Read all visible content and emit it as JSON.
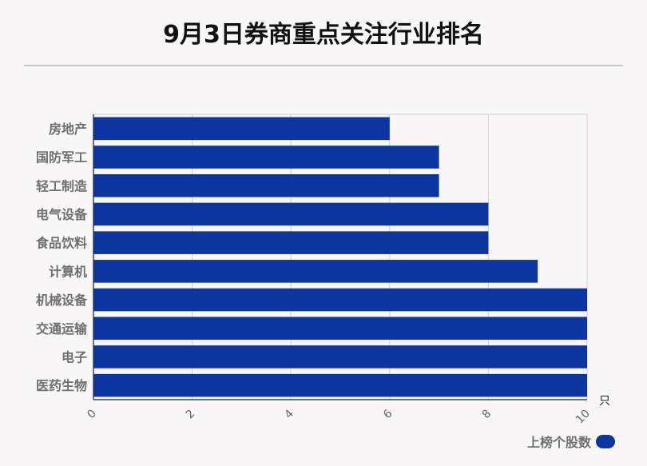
{
  "chart_data": {
    "type": "bar",
    "orientation": "horizontal",
    "title": "9月3日券商重点关注行业排名",
    "categories": [
      "房地产",
      "国防军工",
      "轻工制造",
      "电气设备",
      "食品饮料",
      "计算机",
      "机械设备",
      "交通运输",
      "电子",
      "医药生物"
    ],
    "series": [
      {
        "name": "上榜个股数",
        "values": [
          6,
          7,
          7,
          8,
          8,
          9,
          10,
          10,
          10,
          10
        ],
        "color": "#0c35a0"
      }
    ],
    "x_unit": "只",
    "xlim": [
      0,
      10
    ],
    "x_ticks": [
      "0",
      "2",
      "4",
      "6",
      "8",
      "10"
    ],
    "grid": true,
    "legend_position": "bottom-right"
  }
}
